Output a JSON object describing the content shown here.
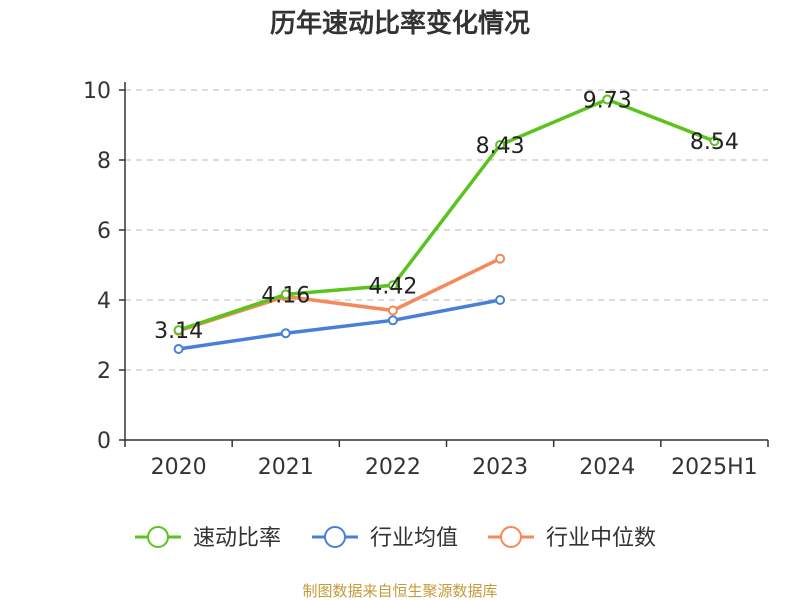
{
  "chart_data": {
    "type": "line",
    "title": "历年速动比率变化情况",
    "categories": [
      "2020",
      "2021",
      "2022",
      "2023",
      "2024",
      "2025H1"
    ],
    "ylim": [
      0,
      10
    ],
    "yticks": [
      0,
      2,
      4,
      6,
      8,
      10
    ],
    "grid": true,
    "legend_position": "bottom",
    "series": [
      {
        "name": "速动比率",
        "color": "#5bc31e",
        "values": [
          3.14,
          4.16,
          4.42,
          8.43,
          9.73,
          8.54
        ],
        "labels": [
          "3.14",
          "4.16",
          "4.42",
          "8.43",
          "9.73",
          "8.54"
        ]
      },
      {
        "name": "行业均值",
        "color": "#4a7fd9",
        "values": [
          2.6,
          3.05,
          3.42,
          4.0,
          null,
          null
        ]
      },
      {
        "name": "行业中位数",
        "color": "#f5895a",
        "values": [
          3.12,
          4.1,
          3.7,
          5.18,
          null,
          null
        ]
      }
    ]
  },
  "footer": {
    "source": "制图数据来自恒生聚源数据库"
  }
}
